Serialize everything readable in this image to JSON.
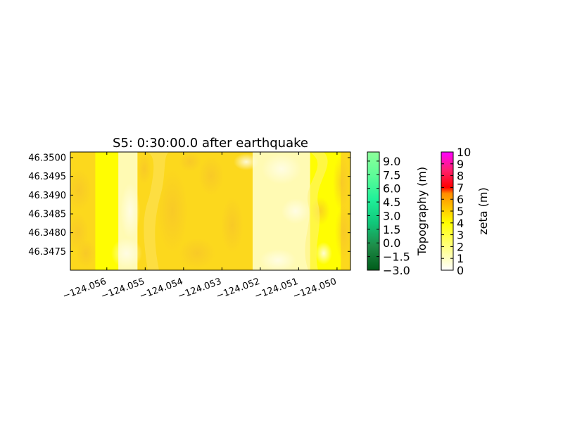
{
  "chart_data": [
    {
      "type": "heatmap",
      "title": "S5: 0:30:00.0 after earthquake",
      "x_ticks": [
        -124.056,
        -124.055,
        -124.054,
        -124.053,
        -124.052,
        -124.051,
        -124.05
      ],
      "x_tick_labels": [
        "−124.056",
        "−124.055",
        "−124.054",
        "−124.053",
        "−124.052",
        "−124.051",
        "−124.050"
      ],
      "xlim": [
        -124.05695,
        -124.04965
      ],
      "y_ticks": [
        46.3475,
        46.348,
        46.3485,
        46.349,
        46.3495,
        46.35
      ],
      "y_tick_labels": [
        "46.3475",
        "46.3480",
        "46.3485",
        "46.3490",
        "46.3495",
        "46.3500"
      ],
      "ylim": [
        46.347,
        46.35015
      ],
      "grid": false,
      "description_colors": {
        "bright_yellow": "#ffff00",
        "pale_yellow": "#fffbd0",
        "orange_yellow": "#fbd420"
      },
      "columns": [
        {
          "x": [
            -124.05695,
            -124.0563
          ],
          "shade": "orange_yellow"
        },
        {
          "x": [
            -124.0563,
            -124.0557
          ],
          "shade": "bright_yellow"
        },
        {
          "x": [
            -124.0557,
            -124.0552
          ],
          "shade": "pale_yellow"
        },
        {
          "x": [
            -124.0552,
            -124.0522
          ],
          "shade": "orange_yellow"
        },
        {
          "x": [
            -124.0522,
            -124.0507
          ],
          "shade": "pale_yellow"
        },
        {
          "x": [
            -124.0507,
            -124.0499
          ],
          "shade": "bright_yellow"
        },
        {
          "x": [
            -124.0499,
            -124.04965
          ],
          "shade": "orange_yellow"
        }
      ]
    },
    {
      "type": "colorbar",
      "label": "Topography (m)",
      "ticks": [
        -3.0,
        -1.5,
        0.0,
        1.5,
        3.0,
        4.5,
        6.0,
        7.5,
        9.0
      ],
      "tick_labels": [
        "−3.0",
        "−1.5",
        "0.0",
        "1.5",
        "3.0",
        "4.5",
        "6.0",
        "7.5",
        "9.0"
      ],
      "range": [
        -3.0,
        10.0
      ],
      "colors": [
        "#005c1a",
        "#1e8a47",
        "#10c77a",
        "#20f099",
        "#5dfc98",
        "#8dff9a"
      ]
    },
    {
      "type": "colorbar",
      "label": "zeta (m)",
      "ticks": [
        0,
        1,
        2,
        3,
        4,
        5,
        6,
        7,
        8,
        9,
        10
      ],
      "tick_labels": [
        "0",
        "1",
        "2",
        "3",
        "4",
        "5",
        "6",
        "7",
        "8",
        "9",
        "10"
      ],
      "range": [
        0,
        10
      ],
      "colors": [
        {
          "at": 0,
          "color": "#ffffff"
        },
        {
          "at": 4,
          "color": "#ffff00"
        },
        {
          "at": 6.5,
          "color": "#ff8c00"
        },
        {
          "at": 7.0,
          "color": "#ff0000"
        },
        {
          "at": 8.5,
          "color": "#ff2070"
        },
        {
          "at": 10,
          "color": "#ff00ff"
        }
      ]
    }
  ]
}
